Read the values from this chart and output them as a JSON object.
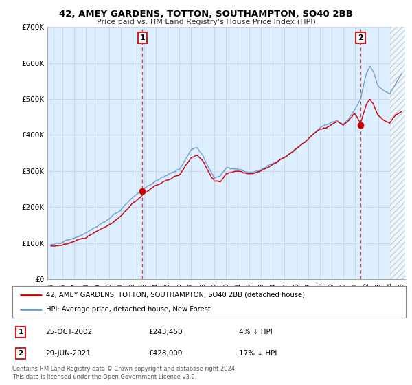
{
  "title": "42, AMEY GARDENS, TOTTON, SOUTHAMPTON, SO40 2BB",
  "subtitle": "Price paid vs. HM Land Registry's House Price Index (HPI)",
  "background_color": "#ffffff",
  "plot_bg_color": "#ddeeff",
  "grid_color": "#c8d8e8",
  "hpi_color": "#6699cc",
  "price_color": "#cc0000",
  "dashed_line_color": "#cc4444",
  "sale1_x": 2002.82,
  "sale1_y": 243450,
  "sale1_label": "1",
  "sale2_x": 2021.5,
  "sale2_y": 428000,
  "sale2_label": "2",
  "legend_entries": [
    "42, AMEY GARDENS, TOTTON, SOUTHAMPTON, SO40 2BB (detached house)",
    "HPI: Average price, detached house, New Forest"
  ],
  "table_rows": [
    [
      "1",
      "25-OCT-2002",
      "£243,450",
      "4% ↓ HPI"
    ],
    [
      "2",
      "29-JUN-2021",
      "£428,000",
      "17% ↓ HPI"
    ]
  ],
  "footnote": "Contains HM Land Registry data © Crown copyright and database right 2024.\nThis data is licensed under the Open Government Licence v3.0.",
  "ylim": [
    0,
    700000
  ],
  "xlim": [
    1994.7,
    2025.3
  ],
  "hatch_start": 2024.0,
  "yticks": [
    0,
    100000,
    200000,
    300000,
    400000,
    500000,
    600000,
    700000
  ],
  "ytick_labels": [
    "£0",
    "£100K",
    "£200K",
    "£300K",
    "£400K",
    "£500K",
    "£600K",
    "£700K"
  ],
  "xticks": [
    1995,
    1996,
    1997,
    1998,
    1999,
    2000,
    2001,
    2002,
    2003,
    2004,
    2005,
    2006,
    2007,
    2008,
    2009,
    2010,
    2011,
    2012,
    2013,
    2014,
    2015,
    2016,
    2017,
    2018,
    2019,
    2020,
    2021,
    2022,
    2023,
    2024,
    2025
  ]
}
